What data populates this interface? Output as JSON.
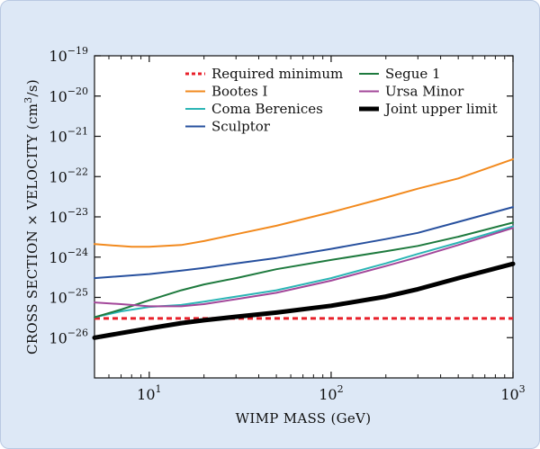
{
  "chart_data": {
    "type": "line",
    "x_scale": "log",
    "y_scale": "log",
    "xlabel": "WIMP MASS (GeV)",
    "ylabel": "CROSS SECTION × VELOCITY (cm³/s)",
    "xlim": [
      5,
      1000
    ],
    "ylim": [
      1e-27,
      1e-19
    ],
    "grid": false,
    "legend_position": "top-right",
    "x_ticks": [
      {
        "base": "10",
        "exp": "1",
        "value": 10
      },
      {
        "base": "10",
        "exp": "2",
        "value": 100
      },
      {
        "base": "10",
        "exp": "3",
        "value": 1000
      }
    ],
    "y_ticks": [
      {
        "base": "10",
        "exp": "−19",
        "value": 1e-19
      },
      {
        "base": "10",
        "exp": "−20",
        "value": 1e-20
      },
      {
        "base": "10",
        "exp": "−21",
        "value": 1e-21
      },
      {
        "base": "10",
        "exp": "−22",
        "value": 1e-22
      },
      {
        "base": "10",
        "exp": "−23",
        "value": 1e-23
      },
      {
        "base": "10",
        "exp": "−24",
        "value": 1e-24
      },
      {
        "base": "10",
        "exp": "−25",
        "value": 1e-25
      },
      {
        "base": "10",
        "exp": "−26",
        "value": 1e-26
      }
    ],
    "series": [
      {
        "name": "Required minimum",
        "color": "#e8202a",
        "style": "dashed",
        "width": 3,
        "x": [
          5,
          1000
        ],
        "y": [
          3e-26,
          3e-26
        ]
      },
      {
        "name": "Bootes I",
        "color": "#f28a1e",
        "style": "solid",
        "width": 2,
        "x": [
          5,
          8,
          10,
          15,
          20,
          30,
          50,
          100,
          200,
          300,
          500,
          1000
        ],
        "y": [
          2.1e-24,
          1.8e-24,
          1.8e-24,
          2e-24,
          2.5e-24,
          3.7e-24,
          6e-24,
          1.3e-23,
          3e-23,
          5e-23,
          9e-23,
          2.7e-22
        ]
      },
      {
        "name": "Coma Berenices",
        "color": "#2bb5b5",
        "style": "solid",
        "width": 2,
        "x": [
          5,
          7,
          10,
          15,
          20,
          30,
          50,
          100,
          200,
          300,
          500,
          1000
        ],
        "y": [
          3.2e-26,
          4.5e-26,
          5.8e-26,
          6.5e-26,
          7.8e-26,
          1.05e-25,
          1.5e-25,
          3e-25,
          7e-25,
          1.2e-24,
          2.3e-24,
          5.8e-24
        ]
      },
      {
        "name": "Sculptor",
        "color": "#27509e",
        "style": "solid",
        "width": 2,
        "x": [
          5,
          10,
          15,
          20,
          30,
          50,
          100,
          200,
          300,
          500,
          1000
        ],
        "y": [
          3e-25,
          3.8e-25,
          4.6e-25,
          5.4e-25,
          7e-25,
          9.5e-25,
          1.6e-24,
          2.8e-24,
          4e-24,
          7.5e-24,
          1.75e-23
        ]
      },
      {
        "name": "Segue 1",
        "color": "#1e7a3e",
        "style": "solid",
        "width": 2,
        "x": [
          5,
          7,
          10,
          15,
          20,
          30,
          50,
          100,
          200,
          300,
          500,
          1000
        ],
        "y": [
          3.2e-26,
          5e-26,
          8.5e-26,
          1.5e-25,
          2.1e-25,
          3e-25,
          5e-25,
          8.5e-25,
          1.4e-24,
          1.9e-24,
          3.2e-24,
          7.2e-24
        ]
      },
      {
        "name": "Ursa Minor",
        "color": "#a3479a",
        "style": "solid",
        "width": 2,
        "x": [
          5,
          7,
          10,
          15,
          20,
          30,
          50,
          100,
          200,
          300,
          500,
          1000
        ],
        "y": [
          7.5e-26,
          6.8e-26,
          6e-26,
          6e-26,
          6.8e-26,
          9e-26,
          1.3e-25,
          2.6e-25,
          6e-25,
          1e-24,
          2e-24,
          5.3e-24
        ]
      },
      {
        "name": "Joint upper limit",
        "color": "#000000",
        "style": "solid",
        "width": 5,
        "x": [
          5,
          7,
          10,
          15,
          20,
          30,
          50,
          100,
          200,
          300,
          500,
          1000
        ],
        "y": [
          1e-26,
          1.3e-26,
          1.7e-26,
          2.3e-26,
          2.7e-26,
          3.3e-26,
          4.2e-26,
          6.2e-26,
          1.05e-25,
          1.6e-25,
          3e-25,
          6.8e-25
        ]
      }
    ],
    "legend_columns": [
      [
        "Required minimum",
        "Bootes I",
        "Coma Berenices",
        "Sculptor"
      ],
      [
        "Segue 1",
        "Ursa Minor",
        "Joint upper limit"
      ]
    ]
  }
}
